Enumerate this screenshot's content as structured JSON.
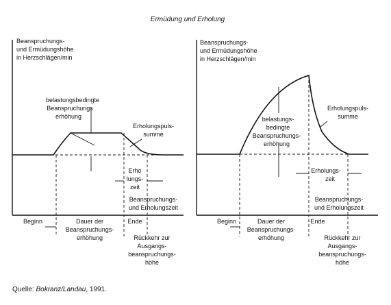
{
  "title": "Ermüdung und Erholung",
  "source": {
    "prefix": "Quelle: ",
    "authors": "Bokranz/Landau",
    "year": ", 1991."
  },
  "left": {
    "ylabel": [
      "Beanspruchungs-",
      "und Ermüdungshöhe",
      "in Herzschlägen/min"
    ],
    "load_label": [
      "belastungsbedingte",
      "Beanspruchungs",
      "erhöhung"
    ],
    "recovery_sum": [
      "Erholungspuls-",
      "summe"
    ],
    "recovery_time": [
      "Erho",
      "lungs-",
      "zeit"
    ],
    "combined_time": [
      "Beanspruchungs-",
      "und Erholungszeit"
    ],
    "beginn": "Beginn",
    "dauer": [
      "Dauer der",
      "Beanspruchungs-",
      "erhöhung"
    ],
    "ende": "Ende",
    "return": [
      "Rückkehr zur",
      "Ausgangs-",
      "beanspruchungs-",
      "höhe"
    ]
  },
  "right": {
    "ylabel": [
      "Beanspruchungs-",
      "und Ermüdungshöhe",
      "in Herzschlägen/min"
    ],
    "load_label": [
      "belastungs-",
      "bedingte",
      "Beanspruchungs-",
      "erhöhung"
    ],
    "recovery_sum": [
      "Erholungspuls-",
      "summe"
    ],
    "recovery_time": [
      "Erholungs-",
      "zeit"
    ],
    "combined_time": [
      "Beanspruchungs-",
      "und Erholungszeit"
    ],
    "beginn": "Beginn",
    "dauer": [
      "Dauer der",
      "Beanspruchungs-",
      "erhöhung"
    ],
    "ende": "Ende",
    "return": [
      "Rückkehr zur",
      "Ausgangs-",
      "beanspruchungs-",
      "höhe"
    ]
  }
}
